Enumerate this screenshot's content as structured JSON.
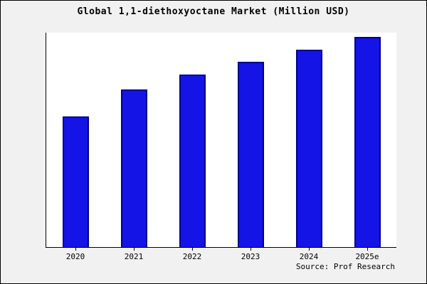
{
  "source": "Source: Prof Research",
  "chart_data": {
    "type": "bar",
    "title": "Global 1,1-diethoxyoctane Market (Million USD)",
    "categories": [
      "2020",
      "2021",
      "2022",
      "2023",
      "2024",
      "2025e"
    ],
    "values": [
      62,
      75,
      82,
      88,
      94,
      100
    ],
    "xlabel": "",
    "ylabel": "",
    "ylim": [
      0,
      102
    ],
    "grid": false,
    "legend": "none",
    "bar_color": "#1414e6",
    "bar_edge_color": "#00008a",
    "plot_background": "#ffffff",
    "figure_background": "#f1f1f1"
  }
}
